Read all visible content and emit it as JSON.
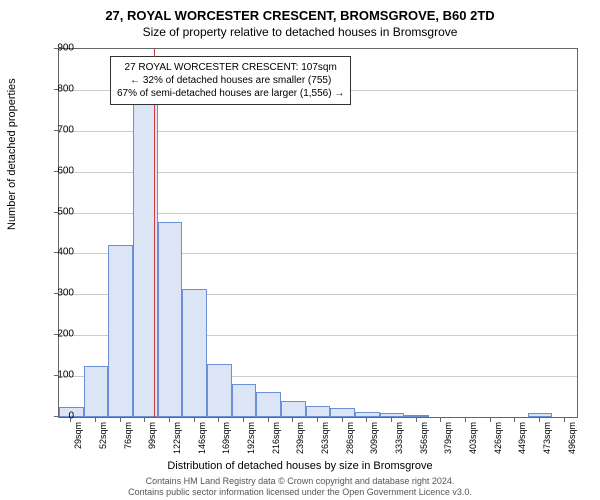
{
  "title": "27, ROYAL WORCESTER CRESCENT, BROMSGROVE, B60 2TD",
  "subtitle": "Size of property relative to detached houses in Bromsgrove",
  "ylabel": "Number of detached properties",
  "xlabel": "Distribution of detached houses by size in Bromsgrove",
  "footer_line1": "Contains HM Land Registry data © Crown copyright and database right 2024.",
  "footer_line2": "Contains public sector information licensed under the Open Government Licence v3.0.",
  "annotation": {
    "line1": "27 ROYAL WORCESTER CRESCENT: 107sqm",
    "line2": "← 32% of detached houses are smaller (755)",
    "line3": "67% of semi-detached houses are larger (1,556) →"
  },
  "chart": {
    "type": "histogram",
    "ylim": [
      0,
      900
    ],
    "ytick_step": 100,
    "background_color": "#ffffff",
    "grid_color": "#cccccc",
    "axis_color": "#666666",
    "bar_fill": "#dbe5f6",
    "bar_border": "#6a8fd6",
    "reference_line_x": 107,
    "reference_line_color": "#d43a3a",
    "x_categories": [
      "29sqm",
      "52sqm",
      "76sqm",
      "99sqm",
      "122sqm",
      "146sqm",
      "169sqm",
      "192sqm",
      "216sqm",
      "239sqm",
      "263sqm",
      "286sqm",
      "309sqm",
      "333sqm",
      "356sqm",
      "379sqm",
      "403sqm",
      "426sqm",
      "449sqm",
      "473sqm",
      "496sqm"
    ],
    "values": [
      25,
      125,
      420,
      790,
      478,
      312,
      130,
      80,
      60,
      40,
      28,
      22,
      12,
      10,
      6,
      0,
      0,
      0,
      0,
      10,
      0
    ],
    "x_numeric_start": 29,
    "x_numeric_step": 23.35,
    "title_fontsize": 13,
    "subtitle_fontsize": 12,
    "label_fontsize": 11,
    "tick_fontsize": 10
  }
}
